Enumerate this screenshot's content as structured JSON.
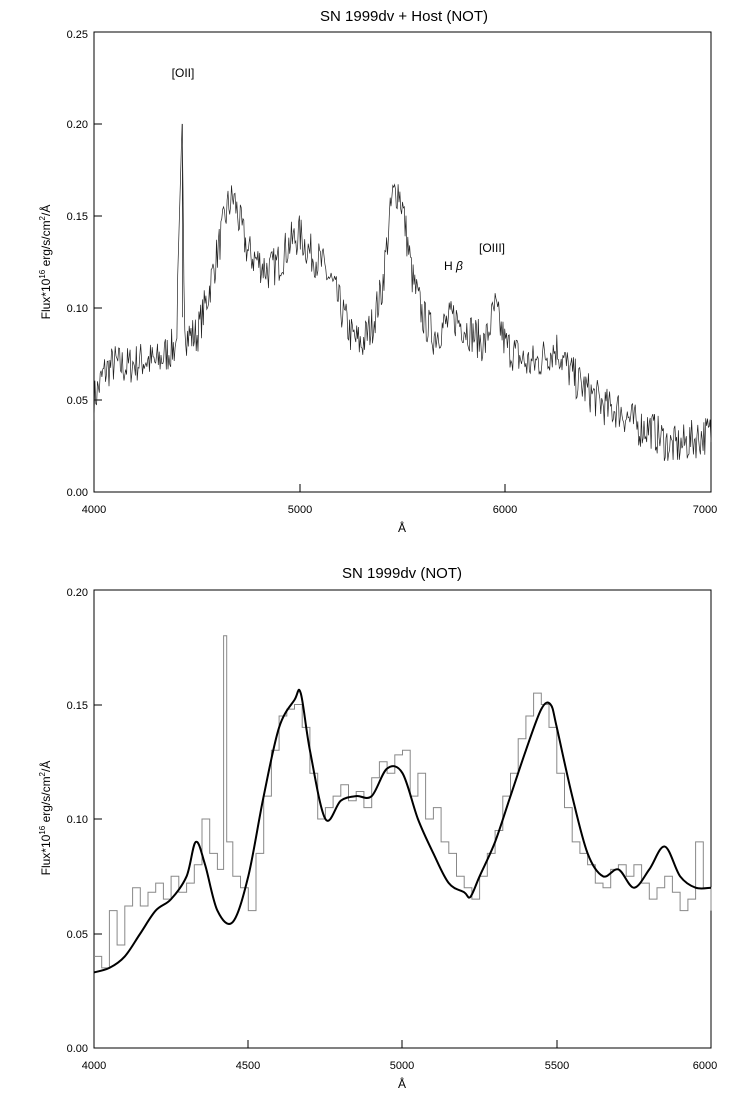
{
  "chart_data": [
    {
      "type": "line",
      "title": "SN 1999dv + Host (NOT)",
      "xlabel": "Å",
      "ylabel_main": "Flux*10",
      "ylabel_exp": "16",
      "ylabel_rest": " erg/s/cm",
      "ylabel_exp2": "2",
      "ylabel_end": "/Å",
      "xlim": [
        4000,
        7000
      ],
      "ylim": [
        0,
        0.25
      ],
      "x_ticks": [
        "4000",
        "5000",
        "6000",
        "7000"
      ],
      "y_ticks": [
        "0.00",
        "0.05",
        "0.10",
        "0.15",
        "0.20",
        "0.25"
      ],
      "grid": false,
      "series": [
        {
          "style": "noisy-spectrum",
          "x": [
            4000,
            4050,
            4100,
            4150,
            4200,
            4250,
            4300,
            4350,
            4400,
            4430,
            4440,
            4450,
            4500,
            4550,
            4600,
            4650,
            4680,
            4700,
            4750,
            4800,
            4850,
            4900,
            4950,
            5000,
            5050,
            5100,
            5150,
            5200,
            5250,
            5300,
            5350,
            5400,
            5430,
            5450,
            5480,
            5500,
            5550,
            5600,
            5650,
            5700,
            5750,
            5800,
            5850,
            5900,
            5950,
            6000,
            6050,
            6100,
            6150,
            6200,
            6250,
            6300,
            6350,
            6400,
            6450,
            6500,
            6550,
            6600,
            6650,
            6700,
            6750,
            6800,
            6850,
            6900,
            6950,
            7000
          ],
          "y": [
            0.05,
            0.065,
            0.07,
            0.068,
            0.07,
            0.072,
            0.07,
            0.075,
            0.08,
            0.2,
            0.095,
            0.085,
            0.085,
            0.105,
            0.13,
            0.155,
            0.16,
            0.15,
            0.13,
            0.125,
            0.12,
            0.125,
            0.135,
            0.14,
            0.13,
            0.125,
            0.115,
            0.1,
            0.085,
            0.08,
            0.09,
            0.11,
            0.14,
            0.16,
            0.165,
            0.155,
            0.115,
            0.095,
            0.085,
            0.09,
            0.095,
            0.09,
            0.085,
            0.08,
            0.1,
            0.08,
            0.075,
            0.07,
            0.07,
            0.075,
            0.078,
            0.068,
            0.06,
            0.055,
            0.05,
            0.045,
            0.045,
            0.04,
            0.035,
            0.035,
            0.03,
            0.025,
            0.025,
            0.028,
            0.03,
            0.032
          ]
        }
      ],
      "annotations": [
        {
          "text": "[OII]",
          "x": 4420,
          "y": 0.226
        },
        {
          "text": "H ",
          "x": 5720,
          "y": 0.121
        },
        {
          "text": "β",
          "x": 5780,
          "y": 0.121
        },
        {
          "text": "[OIII]",
          "x": 5950,
          "y": 0.128
        }
      ]
    },
    {
      "type": "line",
      "title": "SN 1999dv (NOT)",
      "xlabel": "Å",
      "ylabel_main": "Flux*10",
      "ylabel_exp": "16",
      "ylabel_rest": " erg/s/cm",
      "ylabel_exp2": "2",
      "ylabel_end": "/Å",
      "xlim": [
        4000,
        6000
      ],
      "ylim": [
        0,
        0.2
      ],
      "x_ticks": [
        "4000",
        "4500",
        "5000",
        "5500",
        "6000"
      ],
      "y_ticks": [
        "0.00",
        "0.05",
        "0.10",
        "0.15",
        "0.20"
      ],
      "grid": false,
      "series": [
        {
          "style": "histogram",
          "x": [
            4000,
            4025,
            4050,
            4075,
            4100,
            4125,
            4150,
            4175,
            4200,
            4225,
            4250,
            4275,
            4300,
            4325,
            4350,
            4375,
            4400,
            4420,
            4430,
            4450,
            4475,
            4500,
            4525,
            4550,
            4575,
            4600,
            4625,
            4650,
            4675,
            4700,
            4725,
            4750,
            4775,
            4800,
            4825,
            4850,
            4875,
            4900,
            4925,
            4950,
            4975,
            5000,
            5025,
            5050,
            5075,
            5100,
            5125,
            5150,
            5175,
            5200,
            5225,
            5250,
            5275,
            5300,
            5325,
            5350,
            5375,
            5400,
            5425,
            5450,
            5475,
            5500,
            5525,
            5550,
            5575,
            5600,
            5625,
            5650,
            5675,
            5700,
            5725,
            5750,
            5775,
            5800,
            5825,
            5850,
            5875,
            5900,
            5925,
            5950,
            5975,
            6000
          ],
          "y": [
            0.04,
            0.035,
            0.06,
            0.045,
            0.062,
            0.07,
            0.062,
            0.068,
            0.072,
            0.065,
            0.075,
            0.068,
            0.072,
            0.08,
            0.1,
            0.085,
            0.078,
            0.18,
            0.09,
            0.075,
            0.07,
            0.06,
            0.085,
            0.11,
            0.13,
            0.145,
            0.148,
            0.15,
            0.14,
            0.12,
            0.1,
            0.105,
            0.11,
            0.115,
            0.108,
            0.112,
            0.105,
            0.118,
            0.125,
            0.12,
            0.128,
            0.13,
            0.11,
            0.12,
            0.1,
            0.105,
            0.09,
            0.085,
            0.075,
            0.07,
            0.065,
            0.075,
            0.085,
            0.095,
            0.11,
            0.12,
            0.135,
            0.145,
            0.155,
            0.15,
            0.14,
            0.12,
            0.105,
            0.09,
            0.085,
            0.08,
            0.072,
            0.07,
            0.078,
            0.08,
            0.075,
            0.08,
            0.072,
            0.065,
            0.07,
            0.075,
            0.068,
            0.06,
            0.065,
            0.09,
            0.07,
            0.06
          ]
        },
        {
          "style": "smooth",
          "x": [
            4000,
            4050,
            4100,
            4150,
            4200,
            4250,
            4300,
            4330,
            4360,
            4400,
            4450,
            4500,
            4550,
            4600,
            4650,
            4670,
            4700,
            4750,
            4800,
            4850,
            4900,
            4950,
            5000,
            5050,
            5100,
            5150,
            5200,
            5220,
            5250,
            5300,
            5350,
            5400,
            5450,
            5480,
            5500,
            5550,
            5600,
            5650,
            5700,
            5750,
            5800,
            5850,
            5900,
            5950,
            6000
          ],
          "y": [
            0.033,
            0.035,
            0.04,
            0.05,
            0.06,
            0.065,
            0.075,
            0.09,
            0.08,
            0.06,
            0.055,
            0.075,
            0.11,
            0.14,
            0.152,
            0.155,
            0.13,
            0.1,
            0.108,
            0.11,
            0.11,
            0.122,
            0.12,
            0.1,
            0.085,
            0.072,
            0.068,
            0.066,
            0.075,
            0.09,
            0.11,
            0.13,
            0.148,
            0.15,
            0.14,
            0.11,
            0.085,
            0.075,
            0.078,
            0.07,
            0.078,
            0.088,
            0.075,
            0.07,
            0.07
          ]
        }
      ]
    }
  ]
}
